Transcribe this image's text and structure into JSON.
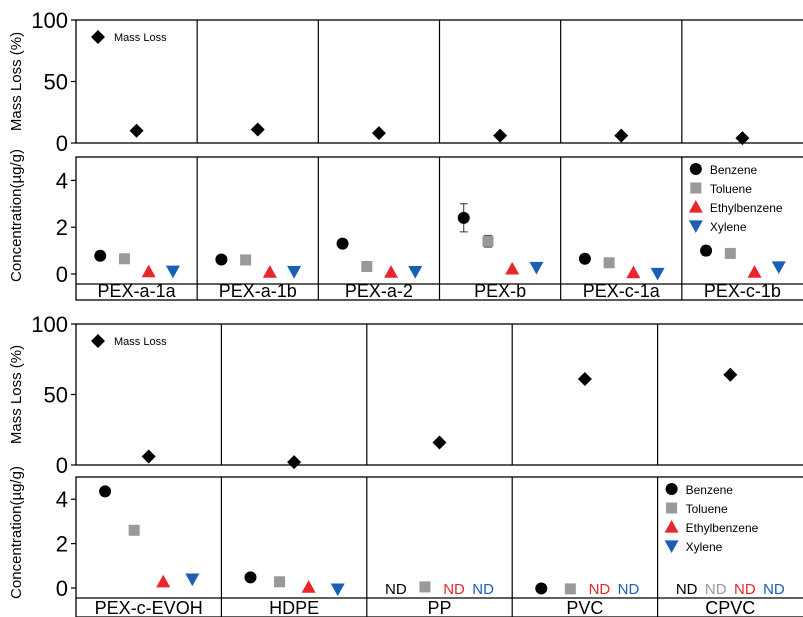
{
  "chart_data": [
    {
      "type": "scatter",
      "panel": "top-mass-loss",
      "ylabel": "Mass Loss (%)",
      "ylim": [
        0,
        100
      ],
      "yticks": [
        0,
        50,
        100
      ],
      "legend": [
        "Mass Loss"
      ],
      "categories": [
        "PEX-a-1a",
        "PEX-a-1b",
        "PEX-a-2",
        "PEX-b",
        "PEX-c-1a",
        "PEX-c-1b"
      ],
      "series": [
        {
          "name": "Mass Loss",
          "values": [
            10,
            11,
            8,
            6,
            6,
            4
          ]
        }
      ]
    },
    {
      "type": "scatter",
      "panel": "top-concentration",
      "ylabel": "Concentration(µg/g)",
      "ylim": [
        0,
        5
      ],
      "yticks": [
        0,
        2,
        4
      ],
      "legend": [
        "Benzene",
        "Toluene",
        "Ethylbenzene",
        "Xylene"
      ],
      "categories": [
        "PEX-a-1a",
        "PEX-a-1b",
        "PEX-a-2",
        "PEX-b",
        "PEX-c-1a",
        "PEX-c-1b"
      ],
      "series": [
        {
          "name": "Benzene",
          "values": [
            0.78,
            0.62,
            1.3,
            2.4,
            0.65,
            1.0
          ],
          "errors": [
            0,
            0,
            0,
            0.6,
            0,
            0.2
          ]
        },
        {
          "name": "Toluene",
          "values": [
            0.65,
            0.6,
            0.32,
            1.4,
            0.48,
            0.88
          ],
          "errors": [
            0,
            0,
            0,
            0.25,
            0,
            0
          ]
        },
        {
          "name": "Ethylbenzene",
          "values": [
            0.1,
            0.08,
            0.08,
            0.22,
            0.06,
            0.08
          ],
          "errors": [
            0,
            0,
            0,
            0,
            0,
            0
          ]
        },
        {
          "name": "Xylene",
          "values": [
            0.12,
            0.1,
            0.1,
            0.28,
            0.02,
            0.3
          ],
          "errors": [
            0,
            0,
            0,
            0,
            0,
            0
          ]
        }
      ]
    },
    {
      "type": "scatter",
      "panel": "bottom-mass-loss",
      "ylabel": "Mass Loss (%)",
      "ylim": [
        0,
        100
      ],
      "yticks": [
        0,
        50,
        100
      ],
      "legend": [
        "Mass Loss"
      ],
      "categories": [
        "PEX-c-EVOH",
        "HDPE",
        "PP",
        "PVC",
        "CPVC"
      ],
      "series": [
        {
          "name": "Mass Loss",
          "values": [
            6,
            2,
            16,
            61,
            64
          ]
        }
      ]
    },
    {
      "type": "scatter",
      "panel": "bottom-concentration",
      "ylabel": "Concentration(µg/g)",
      "ylim": [
        0,
        5
      ],
      "yticks": [
        0,
        2,
        4
      ],
      "legend": [
        "Benzene",
        "Toluene",
        "Ethylbenzene",
        "Xylene"
      ],
      "categories": [
        "PEX-c-EVOH",
        "HDPE",
        "PP",
        "PVC",
        "CPVC"
      ],
      "nd_label": "ND",
      "series": [
        {
          "name": "Benzene",
          "values": [
            4.35,
            0.48,
            null,
            -0.02,
            null
          ],
          "errors": [
            0.12,
            0,
            0,
            0,
            0
          ]
        },
        {
          "name": "Toluene",
          "values": [
            2.6,
            0.28,
            0.05,
            -0.04,
            null
          ],
          "errors": [
            0,
            0,
            0,
            0,
            0
          ]
        },
        {
          "name": "Ethylbenzene",
          "values": [
            0.28,
            0.04,
            null,
            null,
            null
          ],
          "errors": [
            0,
            0,
            0,
            0,
            0
          ]
        },
        {
          "name": "Xylene",
          "values": [
            0.4,
            -0.05,
            null,
            null,
            null
          ],
          "errors": [
            0,
            0,
            0,
            0,
            0
          ]
        }
      ]
    }
  ],
  "colors": {
    "mass_loss": "#000000",
    "Benzene": "#000000",
    "Toluene": "#999999",
    "Ethylbenzene": "#e8262b",
    "Xylene": "#1a5fb4",
    "nd_text": {
      "Benzene": "#000000",
      "Toluene": "#999999",
      "Ethylbenzene": "#e8262b",
      "Xylene": "#1a5fb4"
    }
  }
}
